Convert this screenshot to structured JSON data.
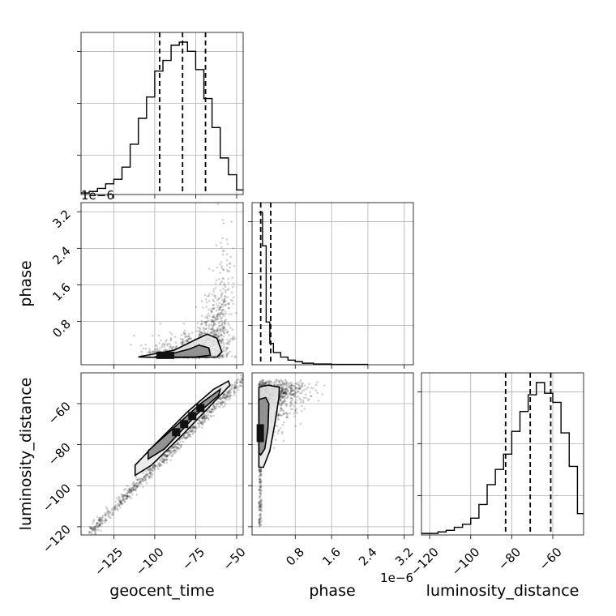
{
  "chart_data": {
    "type": "corner",
    "parameters": [
      "geocent_time",
      "phase",
      "luminosity_distance"
    ],
    "axis_labels": {
      "geocent_time": "geocent_time",
      "phase": "phase",
      "luminosity_distance": "luminosity_distance"
    },
    "ranges": {
      "geocent_time": [
        -145,
        -46
      ],
      "phase": [
        -0.15,
        3.4
      ],
      "luminosity_distance": [
        -124,
        -45
      ]
    },
    "ticks": {
      "geocent_time": [
        -125,
        -100,
        -75,
        -50
      ],
      "phase": [
        0.8,
        1.6,
        2.4,
        3.2
      ],
      "luminosity_distance": [
        -120,
        -100,
        -80,
        -60
      ]
    },
    "tick_labels": {
      "geocent_time": [
        "−125",
        "−100",
        "−75",
        "−50"
      ],
      "phase": [
        "0.8",
        "1.6",
        "2.4",
        "3.2"
      ],
      "luminosity_distance": [
        "−120",
        "−100",
        "−80",
        "−60"
      ]
    },
    "scale_offsets": {
      "phase": "1e−6"
    },
    "histograms": {
      "geocent_time": {
        "edges": [
          -145,
          -140,
          -135,
          -130,
          -125,
          -120,
          -115,
          -110,
          -105,
          -100,
          -95,
          -90,
          -85,
          -80,
          -75,
          -70,
          -65,
          -60,
          -55,
          -50,
          -46
        ],
        "counts": [
          0.01,
          0.02,
          0.04,
          0.07,
          0.1,
          0.18,
          0.33,
          0.5,
          0.64,
          0.81,
          0.88,
          0.98,
          1.0,
          0.94,
          0.82,
          0.63,
          0.44,
          0.24,
          0.13,
          0.03
        ],
        "quantiles": [
          -97,
          -83,
          -69
        ]
      },
      "phase": {
        "edges": [
          0,
          0.08,
          0.16,
          0.24,
          0.32,
          0.48,
          0.64,
          0.8,
          0.96,
          1.2,
          1.6,
          2.4
        ],
        "counts": [
          1.0,
          0.78,
          0.28,
          0.14,
          0.08,
          0.05,
          0.03,
          0.02,
          0.01,
          0.005,
          0.002
        ],
        "quantiles": [
          0.04,
          0.26
        ]
      },
      "luminosity_distance": {
        "edges": [
          -124,
          -120,
          -116,
          -112,
          -108,
          -104,
          -100,
          -96,
          -92,
          -88,
          -84,
          -80,
          -76,
          -72,
          -68,
          -64,
          -60,
          -56,
          -52,
          -48,
          -45
        ],
        "counts": [
          0.01,
          0.01,
          0.02,
          0.03,
          0.05,
          0.07,
          0.11,
          0.2,
          0.33,
          0.43,
          0.53,
          0.68,
          0.81,
          0.92,
          1.0,
          0.93,
          0.87,
          0.67,
          0.45,
          0.14
        ],
        "quantiles": [
          -83,
          -71,
          -61
        ]
      }
    },
    "contours_2d": {
      "phase_vs_geocent_time": {
        "outer": [
          [
            -110,
            0.02
          ],
          [
            -96,
            0.01
          ],
          [
            -80,
            0.01
          ],
          [
            -62,
            0.02
          ],
          [
            -59,
            0.13
          ],
          [
            -62,
            0.43
          ],
          [
            -68,
            0.52
          ],
          [
            -75,
            0.4
          ],
          [
            -88,
            0.17
          ],
          [
            -103,
            0.07
          ],
          [
            -110,
            0.02
          ]
        ],
        "inner": [
          [
            -100,
            0.02
          ],
          [
            -88,
            0.015
          ],
          [
            -75,
            0.02
          ],
          [
            -66,
            0.06
          ],
          [
            -67,
            0.22
          ],
          [
            -73,
            0.28
          ],
          [
            -79,
            0.19
          ],
          [
            -92,
            0.07
          ],
          [
            -100,
            0.02
          ]
        ],
        "density_peak": [
          -94,
          0.03
        ]
      },
      "luminosity_distance_vs_geocent_time": {
        "outer": [
          [
            -112,
            -90
          ],
          [
            -100,
            -80
          ],
          [
            -80,
            -64
          ],
          [
            -64,
            -53
          ],
          [
            -55,
            -49
          ],
          [
            -54,
            -51
          ],
          [
            -66,
            -61
          ],
          [
            -84,
            -76
          ],
          [
            -102,
            -90
          ],
          [
            -112,
            -95
          ],
          [
            -112,
            -90
          ]
        ],
        "inner": [
          [
            -104,
            -83
          ],
          [
            -90,
            -73
          ],
          [
            -72,
            -60
          ],
          [
            -60,
            -53
          ],
          [
            -61,
            -56
          ],
          [
            -74,
            -65
          ],
          [
            -94,
            -82
          ],
          [
            -104,
            -87
          ],
          [
            -104,
            -83
          ]
        ],
        "density_peak": [
          -82,
          -70
        ]
      },
      "luminosity_distance_vs_phase": {
        "outer": [
          [
            0.0,
            -52
          ],
          [
            0.2,
            -51
          ],
          [
            0.45,
            -52
          ],
          [
            0.44,
            -57
          ],
          [
            0.35,
            -70
          ],
          [
            0.24,
            -83
          ],
          [
            0.1,
            -91
          ],
          [
            0.0,
            -91
          ],
          [
            0.0,
            -52
          ]
        ],
        "inner": [
          [
            0.0,
            -58
          ],
          [
            0.15,
            -57
          ],
          [
            0.22,
            -60
          ],
          [
            0.2,
            -72
          ],
          [
            0.13,
            -82
          ],
          [
            0.04,
            -85
          ],
          [
            0.0,
            -84
          ],
          [
            0.0,
            -58
          ]
        ],
        "density_peak": [
          0.04,
          -74
        ]
      }
    }
  }
}
